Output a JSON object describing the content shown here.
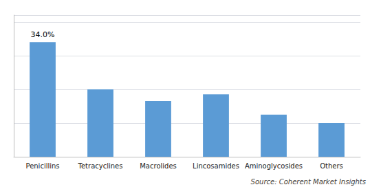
{
  "chart_data": {
    "type": "bar",
    "categories": [
      "Penicillins",
      "Tetracyclines",
      "Macrolides",
      "Lincosamides",
      "Aminoglycosides",
      "Others"
    ],
    "values": [
      34.0,
      20.0,
      16.5,
      18.5,
      12.5,
      10.0
    ],
    "value_labels": [
      "34.0%",
      null,
      null,
      null,
      null,
      null
    ],
    "data_labels": true,
    "color": "#5b9bd5",
    "ylim": [
      0,
      42
    ],
    "yticks": [
      0,
      10,
      20,
      30,
      40
    ],
    "grid": true,
    "tick_labels": "x",
    "annotations": [
      "Source: Coherent Market Insights"
    ]
  }
}
